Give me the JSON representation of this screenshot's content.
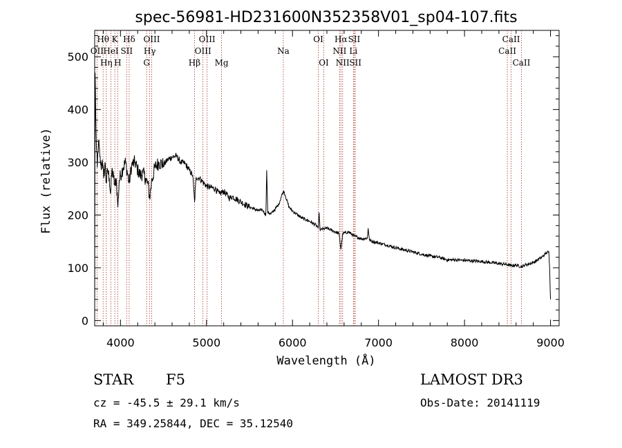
{
  "chart_data": {
    "type": "line",
    "title": "spec-56981-HD231600N352358V01_sp04-107.fits",
    "xlabel": "Wavelength (Å)",
    "ylabel": "Flux (relative)",
    "xlim": [
      3700,
      9100
    ],
    "ylim": [
      -10,
      550
    ],
    "xticks": [
      4000,
      5000,
      6000,
      7000,
      8000,
      9000
    ],
    "yticks": [
      0,
      100,
      200,
      300,
      400,
      500
    ],
    "series": [
      {
        "name": "spectrum",
        "anchors": [
          [
            3700,
            0
          ],
          [
            3705,
            470
          ],
          [
            3712,
            390
          ],
          [
            3720,
            330
          ],
          [
            3730,
            290
          ],
          [
            3745,
            340
          ],
          [
            3760,
            310
          ],
          [
            3775,
            290
          ],
          [
            3790,
            305
          ],
          [
            3805,
            270
          ],
          [
            3820,
            300
          ],
          [
            3835,
            260
          ],
          [
            3850,
            285
          ],
          [
            3870,
            270
          ],
          [
            3885,
            240
          ],
          [
            3900,
            285
          ],
          [
            3920,
            270
          ],
          [
            3935,
            255
          ],
          [
            3950,
            270
          ],
          [
            3970,
            215
          ],
          [
            3985,
            265
          ],
          [
            4000,
            275
          ],
          [
            4030,
            290
          ],
          [
            4060,
            300
          ],
          [
            4101,
            260
          ],
          [
            4130,
            295
          ],
          [
            4170,
            300
          ],
          [
            4200,
            285
          ],
          [
            4230,
            275
          ],
          [
            4260,
            280
          ],
          [
            4290,
            270
          ],
          [
            4320,
            258
          ],
          [
            4340,
            232
          ],
          [
            4360,
            262
          ],
          [
            4400,
            290
          ],
          [
            4450,
            300
          ],
          [
            4500,
            295
          ],
          [
            4550,
            305
          ],
          [
            4600,
            310
          ],
          [
            4650,
            312
          ],
          [
            4700,
            300
          ],
          [
            4750,
            298
          ],
          [
            4800,
            285
          ],
          [
            4840,
            275
          ],
          [
            4861,
            225
          ],
          [
            4880,
            272
          ],
          [
            4920,
            270
          ],
          [
            4960,
            262
          ],
          [
            5000,
            255
          ],
          [
            5050,
            252
          ],
          [
            5100,
            250
          ],
          [
            5150,
            240
          ],
          [
            5200,
            245
          ],
          [
            5270,
            232
          ],
          [
            5300,
            235
          ],
          [
            5400,
            225
          ],
          [
            5500,
            215
          ],
          [
            5550,
            212
          ],
          [
            5600,
            208
          ],
          [
            5650,
            210
          ],
          [
            5690,
            200
          ],
          [
            5700,
            285
          ],
          [
            5712,
            205
          ],
          [
            5750,
            202
          ],
          [
            5800,
            212
          ],
          [
            5840,
            220
          ],
          [
            5880,
            240
          ],
          [
            5900,
            245
          ],
          [
            5920,
            235
          ],
          [
            5960,
            215
          ],
          [
            6000,
            208
          ],
          [
            6100,
            195
          ],
          [
            6200,
            188
          ],
          [
            6280,
            180
          ],
          [
            6300,
            175
          ],
          [
            6310,
            205
          ],
          [
            6320,
            172
          ],
          [
            6400,
            175
          ],
          [
            6500,
            168
          ],
          [
            6540,
            165
          ],
          [
            6563,
            135
          ],
          [
            6585,
            165
          ],
          [
            6650,
            168
          ],
          [
            6720,
            160
          ],
          [
            6800,
            155
          ],
          [
            6870,
            156
          ],
          [
            6880,
            175
          ],
          [
            6895,
            152
          ],
          [
            7000,
            147
          ],
          [
            7100,
            143
          ],
          [
            7200,
            138
          ],
          [
            7300,
            134
          ],
          [
            7400,
            130
          ],
          [
            7500,
            126
          ],
          [
            7600,
            122
          ],
          [
            7700,
            120
          ],
          [
            7800,
            115
          ],
          [
            7900,
            115
          ],
          [
            8000,
            114
          ],
          [
            8100,
            113
          ],
          [
            8200,
            112
          ],
          [
            8300,
            110
          ],
          [
            8400,
            108
          ],
          [
            8500,
            106
          ],
          [
            8542,
            104
          ],
          [
            8600,
            105
          ],
          [
            8662,
            102
          ],
          [
            8700,
            105
          ],
          [
            8800,
            110
          ],
          [
            8850,
            115
          ],
          [
            8900,
            120
          ],
          [
            8950,
            128
          ],
          [
            8980,
            130
          ],
          [
            8990,
            100
          ],
          [
            9000,
            40
          ]
        ]
      }
    ],
    "lines_top": [
      {
        "label": "Hθ",
        "row": 0,
        "x": 3798
      },
      {
        "label": "K",
        "row": 0,
        "x": 3934
      },
      {
        "label": "Hδ",
        "row": 0,
        "x": 4101
      },
      {
        "label": "OIII",
        "row": 0,
        "x": 4363
      },
      {
        "label": "OIII",
        "row": 0,
        "x": 5007
      },
      {
        "label": "OI",
        "row": 0,
        "x": 6300
      },
      {
        "label": "Hα",
        "row": 0,
        "x": 6563
      },
      {
        "label": "SII",
        "row": 0,
        "x": 6717
      },
      {
        "label": "CaII",
        "row": 0,
        "x": 8542
      },
      {
        "label": "OII",
        "row": 1,
        "x": 3727
      },
      {
        "label": "HeI",
        "row": 1,
        "x": 3889
      },
      {
        "label": "SII",
        "row": 1,
        "x": 4072
      },
      {
        "label": "Hγ",
        "row": 1,
        "x": 4340
      },
      {
        "label": "OIII",
        "row": 1,
        "x": 4959
      },
      {
        "label": "Na",
        "row": 1,
        "x": 5893
      },
      {
        "label": "NII",
        "row": 1,
        "x": 6548
      },
      {
        "label": "Li",
        "row": 1,
        "x": 6708
      },
      {
        "label": "CaII",
        "row": 1,
        "x": 8498
      },
      {
        "label": "Hη",
        "row": 2,
        "x": 3835
      },
      {
        "label": "H",
        "row": 2,
        "x": 3968
      },
      {
        "label": "G",
        "row": 2,
        "x": 4304
      },
      {
        "label": "Hβ",
        "row": 2,
        "x": 4861
      },
      {
        "label": "Mg",
        "row": 2,
        "x": 5175
      },
      {
        "label": "OI",
        "row": 2,
        "x": 6364
      },
      {
        "label": "NII",
        "row": 2,
        "x": 6583
      },
      {
        "label": "SII",
        "row": 2,
        "x": 6731
      },
      {
        "label": "CaII",
        "row": 2,
        "x": 8662
      }
    ],
    "grid": false,
    "line_color": "#000000",
    "marker_color": "#a03020"
  },
  "info": {
    "object_class": "STAR",
    "subclass": "F5",
    "survey": "LAMOST DR3",
    "cz": "cz = -45.5 ± 29.1 km/s",
    "obs_date": "Obs-Date: 20141119",
    "coords": "RA = 349.25844, DEC =  35.12540"
  }
}
